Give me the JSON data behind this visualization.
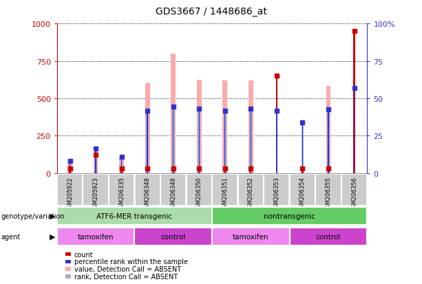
{
  "title": "GDS3667 / 1448686_at",
  "samples": [
    "GSM205922",
    "GSM205923",
    "GSM206335",
    "GSM206348",
    "GSM206349",
    "GSM206350",
    "GSM206351",
    "GSM206352",
    "GSM206353",
    "GSM206354",
    "GSM206355",
    "GSM206356"
  ],
  "count_values": [
    30,
    120,
    30,
    30,
    30,
    30,
    30,
    30,
    650,
    30,
    30,
    950
  ],
  "percentile_rank": [
    80,
    165,
    110,
    415,
    445,
    430,
    415,
    430,
    415,
    340,
    425,
    570
  ],
  "value_absent": [
    80,
    120,
    110,
    600,
    800,
    625,
    620,
    620,
    0,
    0,
    580,
    0
  ],
  "rank_absent": [
    80,
    165,
    110,
    415,
    445,
    430,
    415,
    430,
    0,
    340,
    425,
    0
  ],
  "has_count_marker": [
    true,
    true,
    true,
    true,
    true,
    true,
    true,
    true,
    true,
    true,
    true,
    true
  ],
  "has_percentile_marker": [
    true,
    true,
    true,
    true,
    true,
    true,
    true,
    true,
    true,
    true,
    true,
    true
  ],
  "count_color": "#cc0000",
  "percentile_color": "#3333cc",
  "value_absent_color": "#ffaaaa",
  "rank_absent_color": "#aaaacc",
  "ylim_left": [
    0,
    1000
  ],
  "ylim_right": [
    0,
    100
  ],
  "yticks_left": [
    0,
    250,
    500,
    750,
    1000
  ],
  "yticks_right": [
    0,
    25,
    50,
    75,
    100
  ],
  "ytick_labels_right": [
    "0",
    "25",
    "50",
    "75",
    "100%"
  ],
  "genotype_groups": [
    {
      "label": "ATF6-MER transgenic",
      "start": 0,
      "end": 6,
      "color": "#aaddaa"
    },
    {
      "label": "nontransgenic",
      "start": 6,
      "end": 12,
      "color": "#66cc66"
    }
  ],
  "agent_groups": [
    {
      "label": "tamoxifen",
      "start": 0,
      "end": 3,
      "color": "#ee88ee"
    },
    {
      "label": "control",
      "start": 3,
      "end": 6,
      "color": "#cc44cc"
    },
    {
      "label": "tamoxifen",
      "start": 6,
      "end": 9,
      "color": "#ee88ee"
    },
    {
      "label": "control",
      "start": 9,
      "end": 12,
      "color": "#cc44cc"
    }
  ],
  "legend_items": [
    {
      "label": "count",
      "color": "#cc0000"
    },
    {
      "label": "percentile rank within the sample",
      "color": "#3333cc"
    },
    {
      "label": "value, Detection Call = ABSENT",
      "color": "#ffaaaa"
    },
    {
      "label": "rank, Detection Call = ABSENT",
      "color": "#aaaacc"
    }
  ],
  "left_label_color": "#cc0000",
  "right_label_color": "#3333cc",
  "grid_color": "black",
  "background_sample": "#cccccc"
}
